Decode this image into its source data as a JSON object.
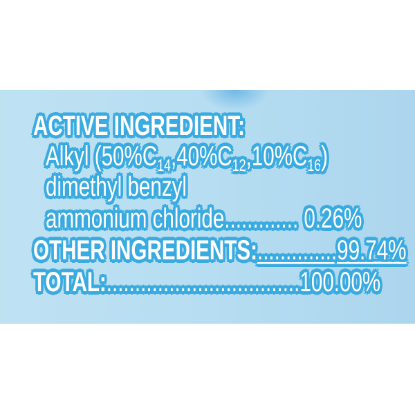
{
  "label": {
    "active_heading": "ACTIVE INGREDIENT:",
    "alkyl": {
      "prefix": "Alkyl (50%C",
      "sub1": "14",
      "mid1": ",40%C",
      "sub2": "12",
      "mid2": ",10%C",
      "sub3": "16",
      "suffix": ")"
    },
    "line2": "dimethyl benzyl",
    "line3_name": "ammonium chloride",
    "line3_dots": ".............",
    "line3_value": "0.26%",
    "other_name": "OTHER INGREDIENTS:",
    "other_dots": "..............",
    "other_value": "99.74%",
    "total_name": "TOTAL:",
    "total_dots": "..................................",
    "total_value": "100.00%"
  },
  "colors": {
    "text": "#ffffff",
    "outline": "#3aabe0",
    "background": "#b6ddf1"
  }
}
